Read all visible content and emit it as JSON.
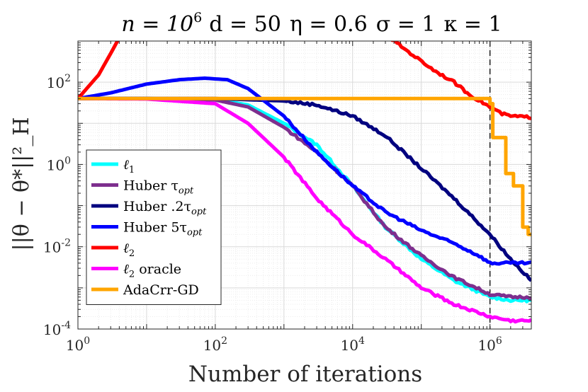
{
  "chart_data": {
    "type": "line",
    "title": "n = 10^6   d = 50   η = 0.6   σ = 1   κ = 1",
    "title_parts": {
      "n": "n = 10",
      "n_exp": "6",
      "d": "d = 50",
      "eta": "η = 0.6",
      "sigma": "σ = 1",
      "kappa": "κ = 1"
    },
    "xlabel": "Number of iterations",
    "ylabel": "||θ − θ*||²_H",
    "xscale": "log",
    "yscale": "log",
    "xlim": [
      1,
      4000000
    ],
    "ylim": [
      0.0001,
      1000
    ],
    "xticks": [
      1,
      100,
      10000,
      1000000
    ],
    "xtick_labels": [
      {
        "base": "10",
        "exp": "0"
      },
      {
        "base": "10",
        "exp": "2"
      },
      {
        "base": "10",
        "exp": "4"
      },
      {
        "base": "10",
        "exp": "6"
      }
    ],
    "yticks": [
      0.0001,
      0.01,
      1,
      100
    ],
    "ytick_labels": [
      {
        "base": "10",
        "exp": "-4"
      },
      {
        "base": "10",
        "exp": "-2"
      },
      {
        "base": "10",
        "exp": "0"
      },
      {
        "base": "10",
        "exp": "2"
      }
    ],
    "grid": true,
    "vline_x": 1000000,
    "legend_position": "lower-left",
    "series": [
      {
        "name": "ℓ1",
        "label": "ℓ",
        "sub": "1",
        "color": "#00FFFF",
        "x": [
          1,
          10,
          100,
          300,
          1000,
          3000,
          10000,
          30000,
          100000,
          300000,
          1000000,
          2000000,
          4000000
        ],
        "y": [
          40,
          40,
          38,
          28,
          10,
          3,
          0.3,
          0.03,
          0.005,
          0.0015,
          0.0006,
          0.0005,
          0.0005
        ]
      },
      {
        "name": "Huber τopt",
        "label": "Huber τ",
        "sub": "opt",
        "color": "#7E2F8E",
        "x": [
          1,
          10,
          100,
          300,
          1000,
          3000,
          10000,
          30000,
          100000,
          300000,
          1000000,
          2000000,
          4000000
        ],
        "y": [
          40,
          40,
          37,
          25,
          8,
          2,
          0.3,
          0.03,
          0.006,
          0.0018,
          0.0007,
          0.0006,
          0.0006
        ]
      },
      {
        "name": "Huber .2τopt",
        "label": "Huber .2τ",
        "sub": "opt",
        "color": "#00007F",
        "x": [
          1,
          100,
          1000,
          3000,
          10000,
          30000,
          100000,
          300000,
          1000000,
          2000000,
          4000000
        ],
        "y": [
          40,
          40,
          35,
          28,
          15,
          5,
          0.8,
          0.15,
          0.02,
          0.005,
          0.0015
        ]
      },
      {
        "name": "Huber 5τopt",
        "label": "Huber 5τ",
        "sub": "opt",
        "color": "#0000FF",
        "x": [
          1,
          3,
          10,
          30,
          70,
          150,
          300,
          1000,
          3000,
          10000,
          30000,
          100000,
          300000,
          700000,
          1000000,
          2000000,
          4000000
        ],
        "y": [
          40,
          55,
          90,
          115,
          125,
          115,
          70,
          15,
          2,
          0.3,
          0.07,
          0.025,
          0.012,
          0.006,
          0.004,
          0.004,
          0.004
        ]
      },
      {
        "name": "ℓ2",
        "label": "ℓ",
        "sub": "2",
        "color": "#FF0000",
        "x": [
          1,
          2,
          3,
          4,
          null,
          35000,
          70000,
          150000,
          300000,
          500000,
          1000000,
          1500000,
          2000000,
          4000000
        ],
        "y": [
          40,
          150,
          500,
          1200,
          null,
          1200,
          500,
          200,
          100,
          50,
          25,
          17,
          15,
          14
        ]
      },
      {
        "name": "ℓ2 oracle",
        "label": "ℓ",
        "sub": "2",
        "suffix": " oracle",
        "color": "#FF00FF",
        "x": [
          1,
          10,
          100,
          300,
          1000,
          3000,
          10000,
          30000,
          100000,
          300000,
          1000000,
          2000000,
          4000000
        ],
        "y": [
          40,
          39,
          30,
          10,
          1.5,
          0.15,
          0.02,
          0.005,
          0.001,
          0.0004,
          0.0002,
          0.00016,
          0.00016
        ]
      },
      {
        "name": "AdaCrr-GD",
        "label": "AdaCrr-GD",
        "sub": "",
        "color": "#FFA500",
        "x": [
          1,
          1000000,
          1000000,
          1100000,
          1100000,
          1700000,
          1700000,
          2200000,
          2200000,
          3000000,
          3000000,
          3600000,
          3600000,
          4000000
        ],
        "y": [
          40,
          40,
          30,
          30,
          4.5,
          4.5,
          0.6,
          0.6,
          0.3,
          0.3,
          0.03,
          0.03,
          0.02,
          0.02
        ]
      }
    ]
  }
}
